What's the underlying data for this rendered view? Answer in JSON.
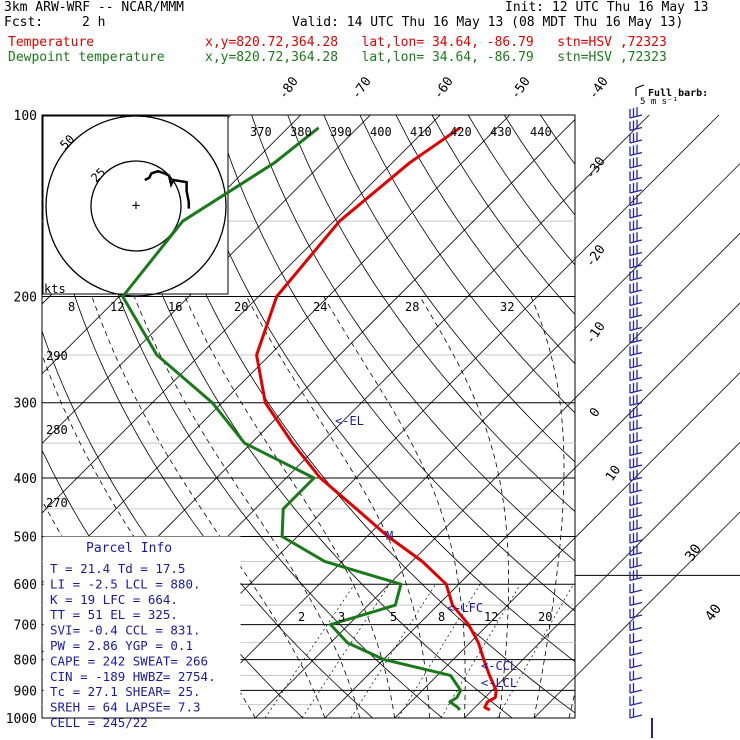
{
  "header": {
    "line1_left": "3km ARW-WRF -- NCAR/MMM",
    "line1_right": "Init: 12 UTC Thu 16 May 13",
    "fcst_label": "Fcst:",
    "fcst_value": "2 h",
    "valid": "Valid: 14 UTC Thu 16 May 13 (08 MDT Thu 16 May 13)",
    "temp_label": "Temperature",
    "temp_info": "x,y=820.72,364.28   lat,lon= 34.64, -86.79   stn=HSV ,72323",
    "dew_label": "Dewpoint temperature",
    "dew_info": "x,y=820.72,364.28   lat,lon= 34.64, -86.79   stn=HSV ,72323"
  },
  "colors": {
    "temperature": "#e00000",
    "dewpoint": "#1a7a1a",
    "wind": "#2222aa",
    "parcel_box": "#1a1aa0"
  },
  "axis": {
    "pressure_labels": [
      "100",
      "200",
      "300",
      "400",
      "500",
      "600",
      "700",
      "800",
      "900",
      "1000"
    ],
    "temp_labels_top": [
      "-80",
      "-70",
      "-60",
      "-50",
      "-40"
    ],
    "temp_labels_right": [
      "-30",
      "-20",
      "-10",
      "0",
      "10"
    ],
    "temp_labels_lower_right": [
      "30",
      "40"
    ],
    "theta_labels": [
      "370",
      "380",
      "390",
      "400",
      "410",
      "420",
      "430",
      "440"
    ],
    "mixing_labels_upper": [
      "8",
      "12",
      "16",
      "20",
      "24",
      "28",
      "32"
    ],
    "mixing_labels_lower": [
      "2",
      "3",
      "5",
      "8",
      "12",
      "20"
    ],
    "theta_side_labels": [
      "290",
      "280",
      "270"
    ],
    "hodograph_unit": "kts",
    "hodograph_rings": [
      "50",
      "25"
    ],
    "wind_title": "Full barb:",
    "wind_sub": "5 m s⁻¹"
  },
  "levels": {
    "el": "<-EL",
    "lfc": "<-LFC",
    "ccl": "<-CCL",
    "lcl": "<-LCL",
    "m": "M"
  },
  "parcel_info": {
    "title": "Parcel Info",
    "rows": [
      "T  =   21.4  Td =  17.5",
      "LI =   -2.5  LCL =  880.",
      "K  =     19  LFC =  664.",
      "TT =     51  EL  =  325.",
      "SVI=   -0.4  CCL =  831.",
      "PW =   2.86  YGP =   0.1",
      "CAPE =  242  SWEAT=  266",
      "CIN =  -189  HWBZ= 2754.",
      "Tc  =  27.1  SHEAR=  25.",
      "SREH =   64  LAPSE=  7.3",
      "CELL = 245/22"
    ]
  },
  "chart_data": {
    "type": "line",
    "title": "",
    "ylabel": "",
    "xlabel": "",
    "y_scale": "log",
    "ylim": [
      1000,
      100
    ],
    "series": [
      {
        "name": "Temperature",
        "x": [
          22.5,
          21.4,
          21.0,
          21.5,
          20.6,
          17.5,
          14.4,
          11.2,
          7.2,
          2.1,
          -1.8,
          -8.5,
          -17.0,
          -25.5,
          -35.1,
          -44.1,
          -53.8,
          -61.9,
          -67.4,
          -69.2,
          -67.5,
          -65.3
        ],
        "y": [
          970,
          960,
          940,
          925,
          900,
          850,
          800,
          750,
          700,
          650,
          600,
          550,
          500,
          450,
          400,
          350,
          300,
          250,
          200,
          150,
          120,
          105
        ]
      },
      {
        "name": "Dewpoint temperature",
        "x": [
          18.2,
          17.5,
          15.6,
          16.0,
          15.5,
          11.9,
          0.1,
          -7.6,
          -12.6,
          -6.1,
          -8.3,
          -22.5,
          -32.2,
          -36.0,
          -36.0,
          -51.0,
          -61.4,
          -76.2,
          -89.5,
          -91.7,
          -86.9,
          -85.6
        ],
        "y": [
          970,
          960,
          940,
          925,
          900,
          850,
          800,
          750,
          700,
          650,
          600,
          550,
          500,
          450,
          400,
          350,
          300,
          250,
          200,
          150,
          120,
          105
        ]
      }
    ],
    "hodograph": {
      "u": [
        24,
        24,
        23,
        23,
        17,
        16,
        15,
        13,
        10,
        7,
        6,
        4
      ],
      "v": [
        -3,
        0,
        5,
        9,
        10,
        8,
        12,
        13,
        14,
        13,
        11,
        10
      ]
    }
  }
}
